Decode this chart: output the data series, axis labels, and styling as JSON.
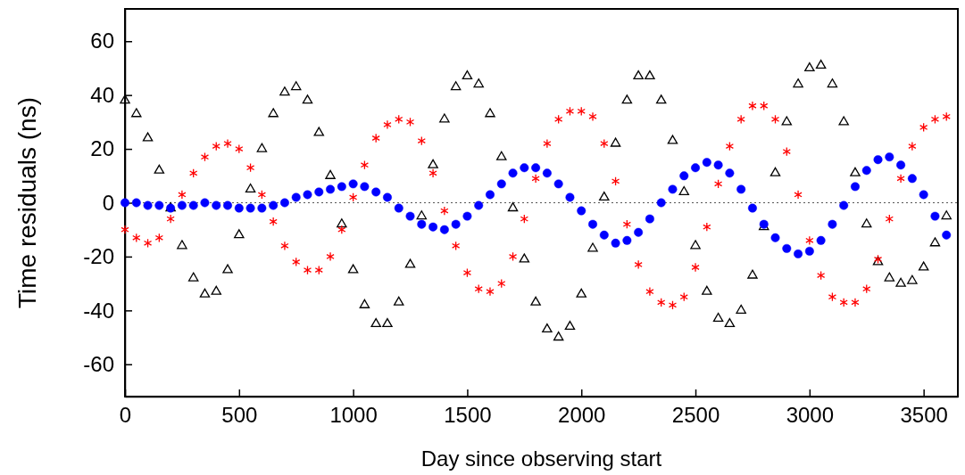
{
  "chart_data": {
    "type": "scatter",
    "xlabel": "Day since observing start",
    "ylabel": "Time residuals (ns)",
    "xlim": [
      0,
      3650
    ],
    "ylim": [
      -72,
      72
    ],
    "xticks": [
      0,
      500,
      1000,
      1500,
      2000,
      2500,
      3000,
      3500
    ],
    "yticks": [
      -60,
      -40,
      -20,
      0,
      20,
      40,
      60
    ],
    "grid": false,
    "ref_lines": [
      {
        "axis": "y",
        "value": 0,
        "label": null,
        "color": "#555555",
        "line_style": "dotted"
      }
    ],
    "x": [
      0,
      50,
      100,
      150,
      200,
      250,
      300,
      350,
      400,
      450,
      500,
      550,
      600,
      650,
      700,
      750,
      800,
      850,
      900,
      950,
      1000,
      1050,
      1100,
      1150,
      1200,
      1250,
      1300,
      1350,
      1400,
      1450,
      1500,
      1550,
      1600,
      1650,
      1700,
      1750,
      1800,
      1850,
      1900,
      1950,
      2000,
      2050,
      2100,
      2150,
      2200,
      2250,
      2300,
      2350,
      2400,
      2450,
      2500,
      2550,
      2600,
      2650,
      2700,
      2750,
      2800,
      2850,
      2900,
      2950,
      3000,
      3050,
      3100,
      3150,
      3200,
      3250,
      3300,
      3350,
      3400,
      3450,
      3500,
      3550,
      3600
    ],
    "series": [
      {
        "color": "#000000",
        "marker": "triangle",
        "values": [
          38,
          33,
          24,
          12,
          -2,
          -16,
          -28,
          -34,
          -33,
          -25,
          -12,
          5,
          20,
          33,
          41,
          43,
          38,
          26,
          10,
          -8,
          -25,
          -38,
          -45,
          -45,
          -37,
          -23,
          -5,
          14,
          31,
          43,
          47,
          44,
          33,
          17,
          -2,
          -21,
          -37,
          -47,
          -50,
          -46,
          -34,
          -17,
          2,
          22,
          38,
          47,
          47,
          38,
          23,
          4,
          -16,
          -33,
          -43,
          -45,
          -40,
          -27,
          -9,
          11,
          30,
          44,
          50,
          51,
          44,
          30,
          11,
          -8,
          -22,
          -28,
          -30,
          -29,
          -24,
          -15,
          -5
        ]
      },
      {
        "color": "#ff0000",
        "marker": "cross",
        "values": [
          -10,
          -13,
          -15,
          -13,
          -6,
          3,
          11,
          17,
          21,
          22,
          20,
          13,
          3,
          -7,
          -16,
          -22,
          -25,
          -25,
          -20,
          -10,
          2,
          14,
          24,
          29,
          31,
          30,
          23,
          11,
          -3,
          -16,
          -26,
          -32,
          -33,
          -30,
          -20,
          -6,
          9,
          22,
          31,
          34,
          34,
          32,
          22,
          8,
          -8,
          -23,
          -33,
          -37,
          -38,
          -35,
          -24,
          -9,
          7,
          21,
          31,
          36,
          36,
          31,
          19,
          3,
          -14,
          -27,
          -35,
          -37,
          -37,
          -32,
          -21,
          -6,
          9,
          21,
          28,
          31,
          32
        ]
      },
      {
        "color": "#0000ff",
        "marker": "circle",
        "values": [
          0,
          0,
          -1,
          -1,
          -2,
          -1,
          -1,
          0,
          -1,
          -1,
          -2,
          -2,
          -2,
          -1,
          0,
          2,
          3,
          4,
          5,
          6,
          7,
          6,
          4,
          2,
          -2,
          -5,
          -8,
          -9,
          -10,
          -8,
          -5,
          -1,
          3,
          7,
          11,
          13,
          13,
          11,
          7,
          2,
          -3,
          -8,
          -12,
          -15,
          -14,
          -11,
          -6,
          0,
          5,
          10,
          13,
          15,
          14,
          11,
          5,
          -2,
          -8,
          -13,
          -17,
          -19,
          -18,
          -14,
          -8,
          -1,
          6,
          12,
          16,
          17,
          14,
          9,
          3,
          -5,
          -12
        ]
      }
    ]
  }
}
